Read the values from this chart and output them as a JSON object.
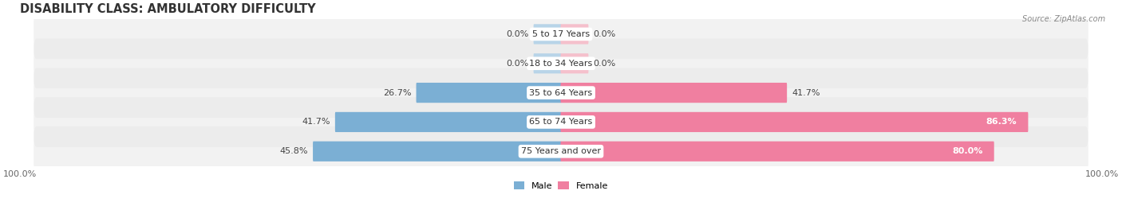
{
  "title": "DISABILITY CLASS: AMBULATORY DIFFICULTY",
  "source": "Source: ZipAtlas.com",
  "categories": [
    "5 to 17 Years",
    "18 to 34 Years",
    "35 to 64 Years",
    "65 to 74 Years",
    "75 Years and over"
  ],
  "male_values": [
    0.0,
    0.0,
    26.7,
    41.7,
    45.8
  ],
  "female_values": [
    0.0,
    0.0,
    41.7,
    86.3,
    80.0
  ],
  "male_color": "#7bafd4",
  "female_color": "#f07fa0",
  "male_color_stub": "#b8d4e8",
  "female_color_stub": "#f5c0cc",
  "bg_row_color": "#e8e8e8",
  "max_val": 100.0,
  "bar_height": 0.62,
  "title_fontsize": 10.5,
  "label_fontsize": 8.0,
  "axis_fontsize": 8.0,
  "stub_val": 5.0
}
